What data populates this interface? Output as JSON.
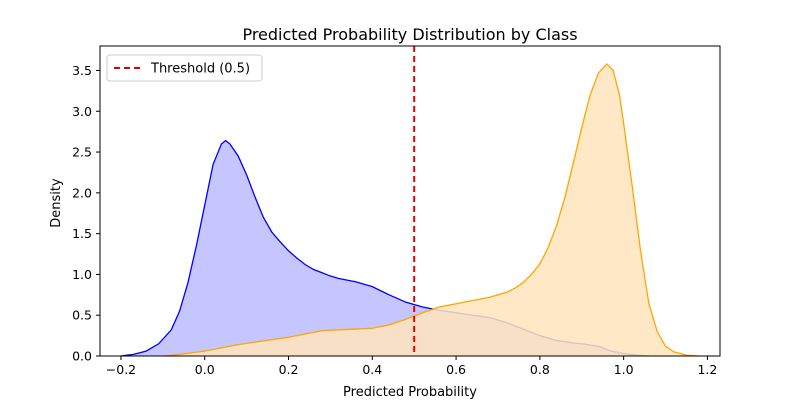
{
  "chart_data": {
    "type": "area",
    "title": "Predicted Probability Distribution by Class",
    "xlabel": "Predicted Probability",
    "ylabel": "Density",
    "xlim": [
      -0.25,
      1.23
    ],
    "ylim": [
      0,
      3.8
    ],
    "xticks": [
      -0.2,
      0.0,
      0.2,
      0.4,
      0.6,
      0.8,
      1.0,
      1.2
    ],
    "xtick_labels": [
      "−0.2",
      "0.0",
      "0.2",
      "0.4",
      "0.6",
      "0.8",
      "1.0",
      "1.2"
    ],
    "yticks": [
      0.0,
      0.5,
      1.0,
      1.5,
      2.0,
      2.5,
      3.0,
      3.5
    ],
    "ytick_labels": [
      "0.0",
      "0.5",
      "1.0",
      "1.5",
      "2.0",
      "2.5",
      "3.0",
      "3.5"
    ],
    "grid": false,
    "legend_placement": "top-left",
    "series": [
      {
        "color": "#0000ff",
        "fill": "#bbbbff",
        "points": [
          [
            -0.2,
            0.0
          ],
          [
            -0.17,
            0.02
          ],
          [
            -0.14,
            0.06
          ],
          [
            -0.11,
            0.15
          ],
          [
            -0.08,
            0.32
          ],
          [
            -0.06,
            0.55
          ],
          [
            -0.04,
            0.9
          ],
          [
            -0.02,
            1.35
          ],
          [
            0.0,
            1.85
          ],
          [
            0.02,
            2.35
          ],
          [
            0.04,
            2.6
          ],
          [
            0.05,
            2.64
          ],
          [
            0.06,
            2.6
          ],
          [
            0.08,
            2.45
          ],
          [
            0.1,
            2.22
          ],
          [
            0.12,
            1.95
          ],
          [
            0.14,
            1.7
          ],
          [
            0.16,
            1.52
          ],
          [
            0.18,
            1.4
          ],
          [
            0.2,
            1.29
          ],
          [
            0.22,
            1.2
          ],
          [
            0.24,
            1.12
          ],
          [
            0.26,
            1.06
          ],
          [
            0.28,
            1.02
          ],
          [
            0.3,
            0.98
          ],
          [
            0.32,
            0.95
          ],
          [
            0.36,
            0.91
          ],
          [
            0.4,
            0.85
          ],
          [
            0.44,
            0.75
          ],
          [
            0.48,
            0.66
          ],
          [
            0.52,
            0.6
          ],
          [
            0.56,
            0.56
          ],
          [
            0.6,
            0.53
          ],
          [
            0.64,
            0.5
          ],
          [
            0.68,
            0.47
          ],
          [
            0.72,
            0.41
          ],
          [
            0.76,
            0.33
          ],
          [
            0.8,
            0.25
          ],
          [
            0.84,
            0.19
          ],
          [
            0.88,
            0.16
          ],
          [
            0.9,
            0.15
          ],
          [
            0.94,
            0.12
          ],
          [
            0.97,
            0.06
          ],
          [
            1.0,
            0.03
          ],
          [
            1.03,
            0.01
          ],
          [
            1.06,
            0.0
          ]
        ]
      },
      {
        "color": "#ffa500",
        "fill": "#ffe4bc",
        "points": [
          [
            -0.1,
            0.0
          ],
          [
            -0.06,
            0.02
          ],
          [
            0.0,
            0.06
          ],
          [
            0.04,
            0.1
          ],
          [
            0.08,
            0.14
          ],
          [
            0.12,
            0.17
          ],
          [
            0.16,
            0.2
          ],
          [
            0.2,
            0.23
          ],
          [
            0.24,
            0.27
          ],
          [
            0.28,
            0.31
          ],
          [
            0.32,
            0.32
          ],
          [
            0.36,
            0.33
          ],
          [
            0.4,
            0.34
          ],
          [
            0.44,
            0.38
          ],
          [
            0.48,
            0.45
          ],
          [
            0.52,
            0.53
          ],
          [
            0.56,
            0.6
          ],
          [
            0.6,
            0.64
          ],
          [
            0.64,
            0.68
          ],
          [
            0.68,
            0.72
          ],
          [
            0.72,
            0.78
          ],
          [
            0.74,
            0.83
          ],
          [
            0.76,
            0.9
          ],
          [
            0.78,
            1.0
          ],
          [
            0.8,
            1.13
          ],
          [
            0.82,
            1.33
          ],
          [
            0.84,
            1.6
          ],
          [
            0.86,
            1.95
          ],
          [
            0.88,
            2.37
          ],
          [
            0.9,
            2.8
          ],
          [
            0.92,
            3.2
          ],
          [
            0.94,
            3.47
          ],
          [
            0.96,
            3.58
          ],
          [
            0.975,
            3.5
          ],
          [
            0.99,
            3.2
          ],
          [
            1.0,
            2.85
          ],
          [
            1.02,
            2.1
          ],
          [
            1.04,
            1.3
          ],
          [
            1.06,
            0.65
          ],
          [
            1.08,
            0.3
          ],
          [
            1.1,
            0.12
          ],
          [
            1.12,
            0.05
          ],
          [
            1.15,
            0.01
          ],
          [
            1.18,
            0.0
          ]
        ]
      }
    ],
    "threshold": {
      "x": 0.5,
      "label": "Threshold (0.5)",
      "color": "#e60000"
    }
  }
}
